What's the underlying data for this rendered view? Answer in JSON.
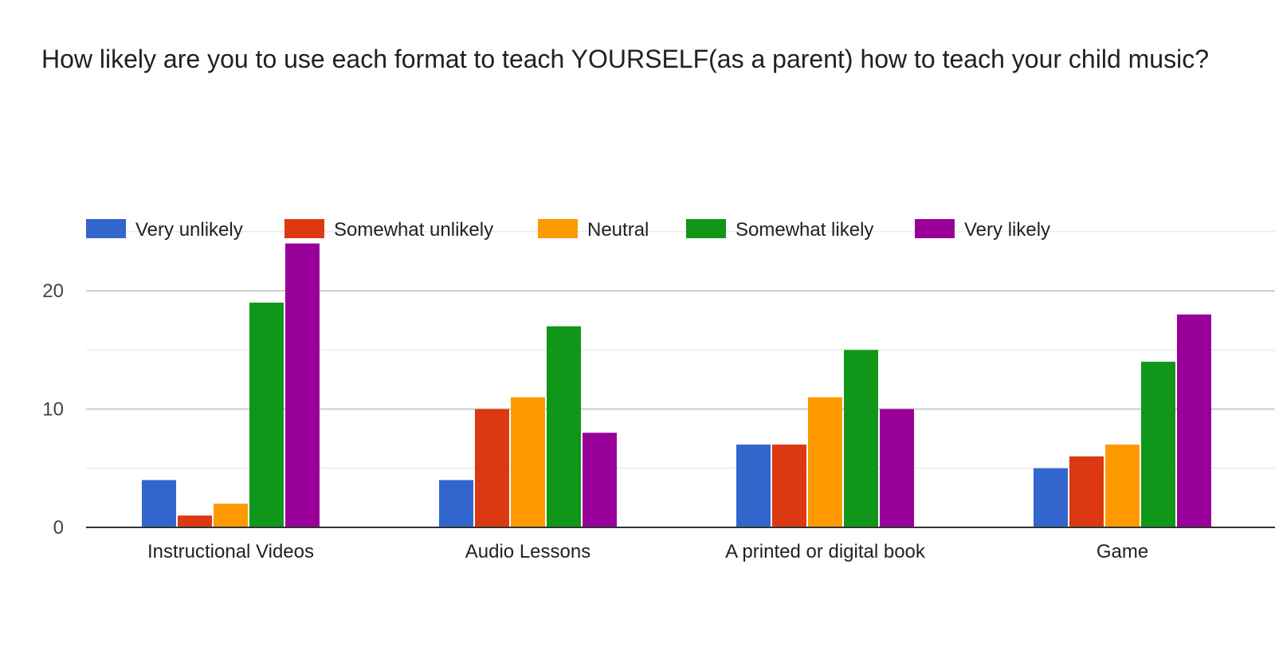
{
  "title": "How likely are you to use each format to teach YOURSELF(as a parent) how to teach your child music?",
  "chart_data": {
    "type": "bar",
    "categories": [
      "Instructional Videos",
      "Audio Lessons",
      "A printed or digital book",
      "Game"
    ],
    "series": [
      {
        "name": "Very unlikely",
        "color": "#3366cc",
        "values": [
          4,
          4,
          7,
          5
        ]
      },
      {
        "name": "Somewhat unlikely",
        "color": "#dc3912",
        "values": [
          1,
          10,
          7,
          6
        ]
      },
      {
        "name": "Neutral",
        "color": "#ff9900",
        "values": [
          2,
          11,
          11,
          7
        ]
      },
      {
        "name": "Somewhat likely",
        "color": "#109618",
        "values": [
          19,
          17,
          15,
          14
        ]
      },
      {
        "name": "Very likely",
        "color": "#990099",
        "values": [
          24,
          8,
          10,
          18
        ]
      }
    ],
    "y_ticks": [
      0,
      10,
      20
    ],
    "ylim": [
      0,
      25
    ],
    "grid": true,
    "legend_position": "top-left"
  }
}
